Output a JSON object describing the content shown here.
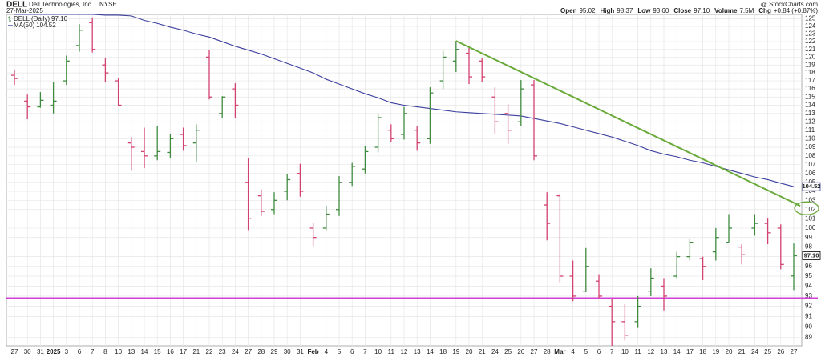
{
  "chart_data": {
    "type": "ohlc",
    "symbol": "DELL",
    "company": "Dell Technologies, Inc.",
    "exchange": "NYSE",
    "date": "27-Mar-2025",
    "credit": "@ StockCharts.com",
    "stats": [
      {
        "label": "Open",
        "value": "95.02"
      },
      {
        "label": "High",
        "value": "98.37"
      },
      {
        "label": "Low",
        "value": "93.60"
      },
      {
        "label": "Close",
        "value": "97.10"
      },
      {
        "label": "Volume",
        "value": "7.5M"
      },
      {
        "label": "Chg",
        "value": "+0.84 (+0.87%)"
      }
    ],
    "categories": [
      "27",
      "30",
      "31",
      "2025",
      "3",
      "6",
      "7",
      "8",
      "10",
      "13",
      "14",
      "15",
      "16",
      "17",
      "21",
      "22",
      "23",
      "24",
      "27",
      "28",
      "29",
      "30",
      "31",
      "Feb",
      "4",
      "5",
      "6",
      "7",
      "10",
      "11",
      "12",
      "13",
      "14",
      "18",
      "19",
      "20",
      "21",
      "24",
      "25",
      "26",
      "27",
      "28",
      "Mar",
      "4",
      "5",
      "6",
      "7",
      "10",
      "11",
      "12",
      "13",
      "14",
      "17",
      "18",
      "19",
      "20",
      "21",
      "24",
      "25",
      "26",
      "27"
    ],
    "ohlc": {
      "name": "DELL (Daily)",
      "last": "97.10",
      "up_color": "#3f8a3f",
      "down_color": "#d2426e",
      "open": [
        117.7,
        114.5,
        113.8,
        114,
        117,
        121.5,
        124.5,
        119,
        117,
        109.5,
        108.5,
        108,
        108.4,
        110.5,
        109.5,
        120,
        113,
        116,
        105,
        103.5,
        102,
        104,
        106,
        100,
        100,
        102,
        105,
        106.5,
        109,
        111,
        110.5,
        111,
        110,
        117,
        119.5,
        120.5,
        119.5,
        115,
        113,
        112,
        116.5,
        102.5,
        103.5,
        95,
        93.5,
        94.5,
        92,
        90.5,
        90.5,
        93.5,
        94,
        95,
        97,
        96.8,
        97.5,
        98.5,
        98,
        100,
        100.5,
        100,
        95.02
      ],
      "high": [
        118.3,
        115.3,
        115.6,
        116.8,
        120.2,
        124.3,
        125.2,
        119.9,
        117.4,
        110.2,
        111.3,
        111.5,
        110.5,
        111.3,
        111.7,
        120.9,
        115.1,
        116.7,
        107.7,
        104.2,
        103.9,
        105.9,
        107.1,
        100.6,
        102.4,
        105.7,
        107.2,
        109.1,
        112.9,
        111.7,
        113.8,
        111.5,
        116.2,
        120.8,
        122.1,
        121.2,
        119.9,
        116.2,
        114.1,
        117.1,
        117.1,
        103.9,
        103.7,
        96.6,
        97.9,
        95.2,
        92.7,
        92.2,
        93,
        95.8,
        94.8,
        97.5,
        98.9,
        97,
        100,
        101.5,
        98.3,
        101.5,
        101.1,
        100.4,
        98.37
      ],
      "low": [
        116.5,
        112.3,
        113.7,
        113,
        116.5,
        120.7,
        120.6,
        116.9,
        113.9,
        106.3,
        106.6,
        107.5,
        107.8,
        108.6,
        107.3,
        114.7,
        112.5,
        112.5,
        99.8,
        101.3,
        101.5,
        103,
        103.4,
        98.1,
        99.8,
        101.3,
        104.6,
        106,
        108.4,
        109.6,
        109.9,
        108.6,
        109.4,
        116,
        118.1,
        116.6,
        116.9,
        110.6,
        109.4,
        111.5,
        107.5,
        98.7,
        94.4,
        92.5,
        93.4,
        92.8,
        88.2,
        88.7,
        89.9,
        93,
        91.6,
        94.8,
        96.6,
        94.6,
        96.6,
        98.5,
        96.2,
        99.2,
        98.3,
        95.7,
        93.6
      ],
      "close": [
        117.3,
        113.8,
        114.6,
        114.5,
        119.5,
        123.5,
        121,
        118,
        114,
        109,
        108,
        108.5,
        110,
        109.2,
        111,
        115,
        115,
        114,
        101,
        101.8,
        103,
        105.3,
        104,
        99,
        101.5,
        105,
        106.8,
        108.5,
        112.5,
        110,
        113,
        109.5,
        115.5,
        120,
        121,
        117.5,
        117.5,
        112,
        111,
        116,
        108,
        100.5,
        95,
        93,
        96,
        93,
        90.5,
        89.2,
        92,
        94.8,
        93,
        97,
        98.5,
        96,
        99,
        100,
        97.2,
        100.5,
        99.5,
        96.2,
        97.1
      ]
    },
    "series": [
      {
        "name": "MA(50)",
        "last": "104.52",
        "color": "#3b3f9e",
        "values": [
          125.6,
          125.6,
          125.6,
          125.6,
          125.6,
          125.6,
          125.6,
          125.5,
          125.5,
          125.4,
          124.8,
          124.4,
          123.9,
          123.5,
          123,
          122.6,
          122,
          121.4,
          120.9,
          120.4,
          119.8,
          119.2,
          118.6,
          118,
          117.2,
          116.6,
          116,
          115.4,
          114.9,
          114.3,
          114,
          113.8,
          113.6,
          113.4,
          113.2,
          113.1,
          113,
          112.9,
          112.8,
          112.7,
          112.4,
          112.1,
          111.8,
          111.4,
          111,
          110.6,
          110.2,
          109.7,
          109.2,
          108.6,
          108.2,
          107.9,
          107.5,
          107.2,
          106.8,
          106.4,
          106,
          105.6,
          105.3,
          104.9,
          104.52
        ]
      }
    ],
    "trendline": {
      "color": "#6aaa3a",
      "from": {
        "x": 34,
        "value": 122.1
      },
      "to": {
        "x": 60.5,
        "value": 102.4
      }
    },
    "hline": {
      "color": "#d43fd4",
      "value": 92.8
    },
    "log_scale": true,
    "grid": true,
    "ylim": [
      88.2,
      125.6
    ],
    "yticks": [
      89,
      90,
      91,
      92,
      93,
      94,
      95,
      96,
      97,
      98,
      99,
      100,
      101,
      102,
      103,
      104,
      105,
      106,
      107,
      108,
      109,
      110,
      111,
      112,
      113,
      114,
      115,
      116,
      117,
      118,
      119,
      120,
      121,
      122,
      123,
      124,
      125
    ]
  }
}
